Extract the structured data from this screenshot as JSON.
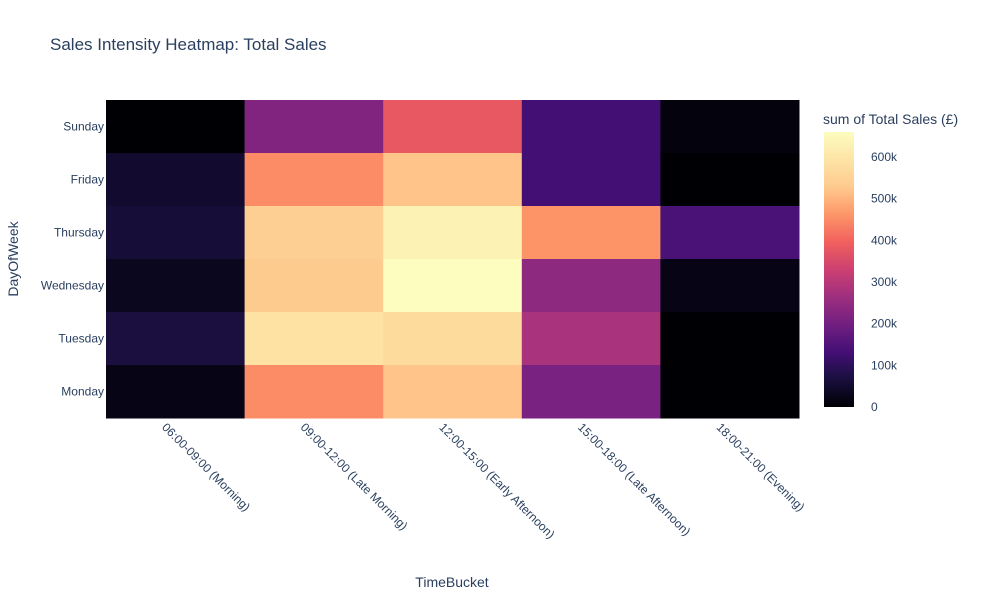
{
  "chart_data": {
    "type": "heatmap",
    "title": "Sales Intensity Heatmap: Total Sales",
    "xlabel": "TimeBucket",
    "ylabel": "DayOfWeek",
    "x": [
      "06:00-09:00 (Morning)",
      "09:00-12:00 (Late Morning)",
      "12:00-15:00 (Early Afternoon)",
      "15:00-18:00 (Late Afternoon)",
      "18:00-21:00 (Evening)"
    ],
    "y": [
      "Sunday",
      "Friday",
      "Thursday",
      "Wednesday",
      "Tuesday",
      "Monday"
    ],
    "z": [
      [
        0,
        220000,
        380000,
        130000,
        10000
      ],
      [
        50000,
        450000,
        520000,
        130000,
        0
      ],
      [
        60000,
        540000,
        630000,
        460000,
        140000
      ],
      [
        30000,
        530000,
        660000,
        240000,
        20000
      ],
      [
        70000,
        590000,
        570000,
        280000,
        0
      ],
      [
        20000,
        450000,
        520000,
        210000,
        0
      ]
    ],
    "colorbar": {
      "title": "sum of Total Sales (£)",
      "range": [
        0,
        660000
      ],
      "ticks": [
        {
          "value": 0,
          "label": "0"
        },
        {
          "value": 100000,
          "label": "100k"
        },
        {
          "value": 200000,
          "label": "200k"
        },
        {
          "value": 300000,
          "label": "300k"
        },
        {
          "value": 400000,
          "label": "400k"
        },
        {
          "value": 500000,
          "label": "500k"
        },
        {
          "value": 600000,
          "label": "600k"
        }
      ]
    },
    "colorscale": "magma",
    "colors": {
      "text": "#2a3f5f",
      "title": "#2a3f5f"
    }
  }
}
